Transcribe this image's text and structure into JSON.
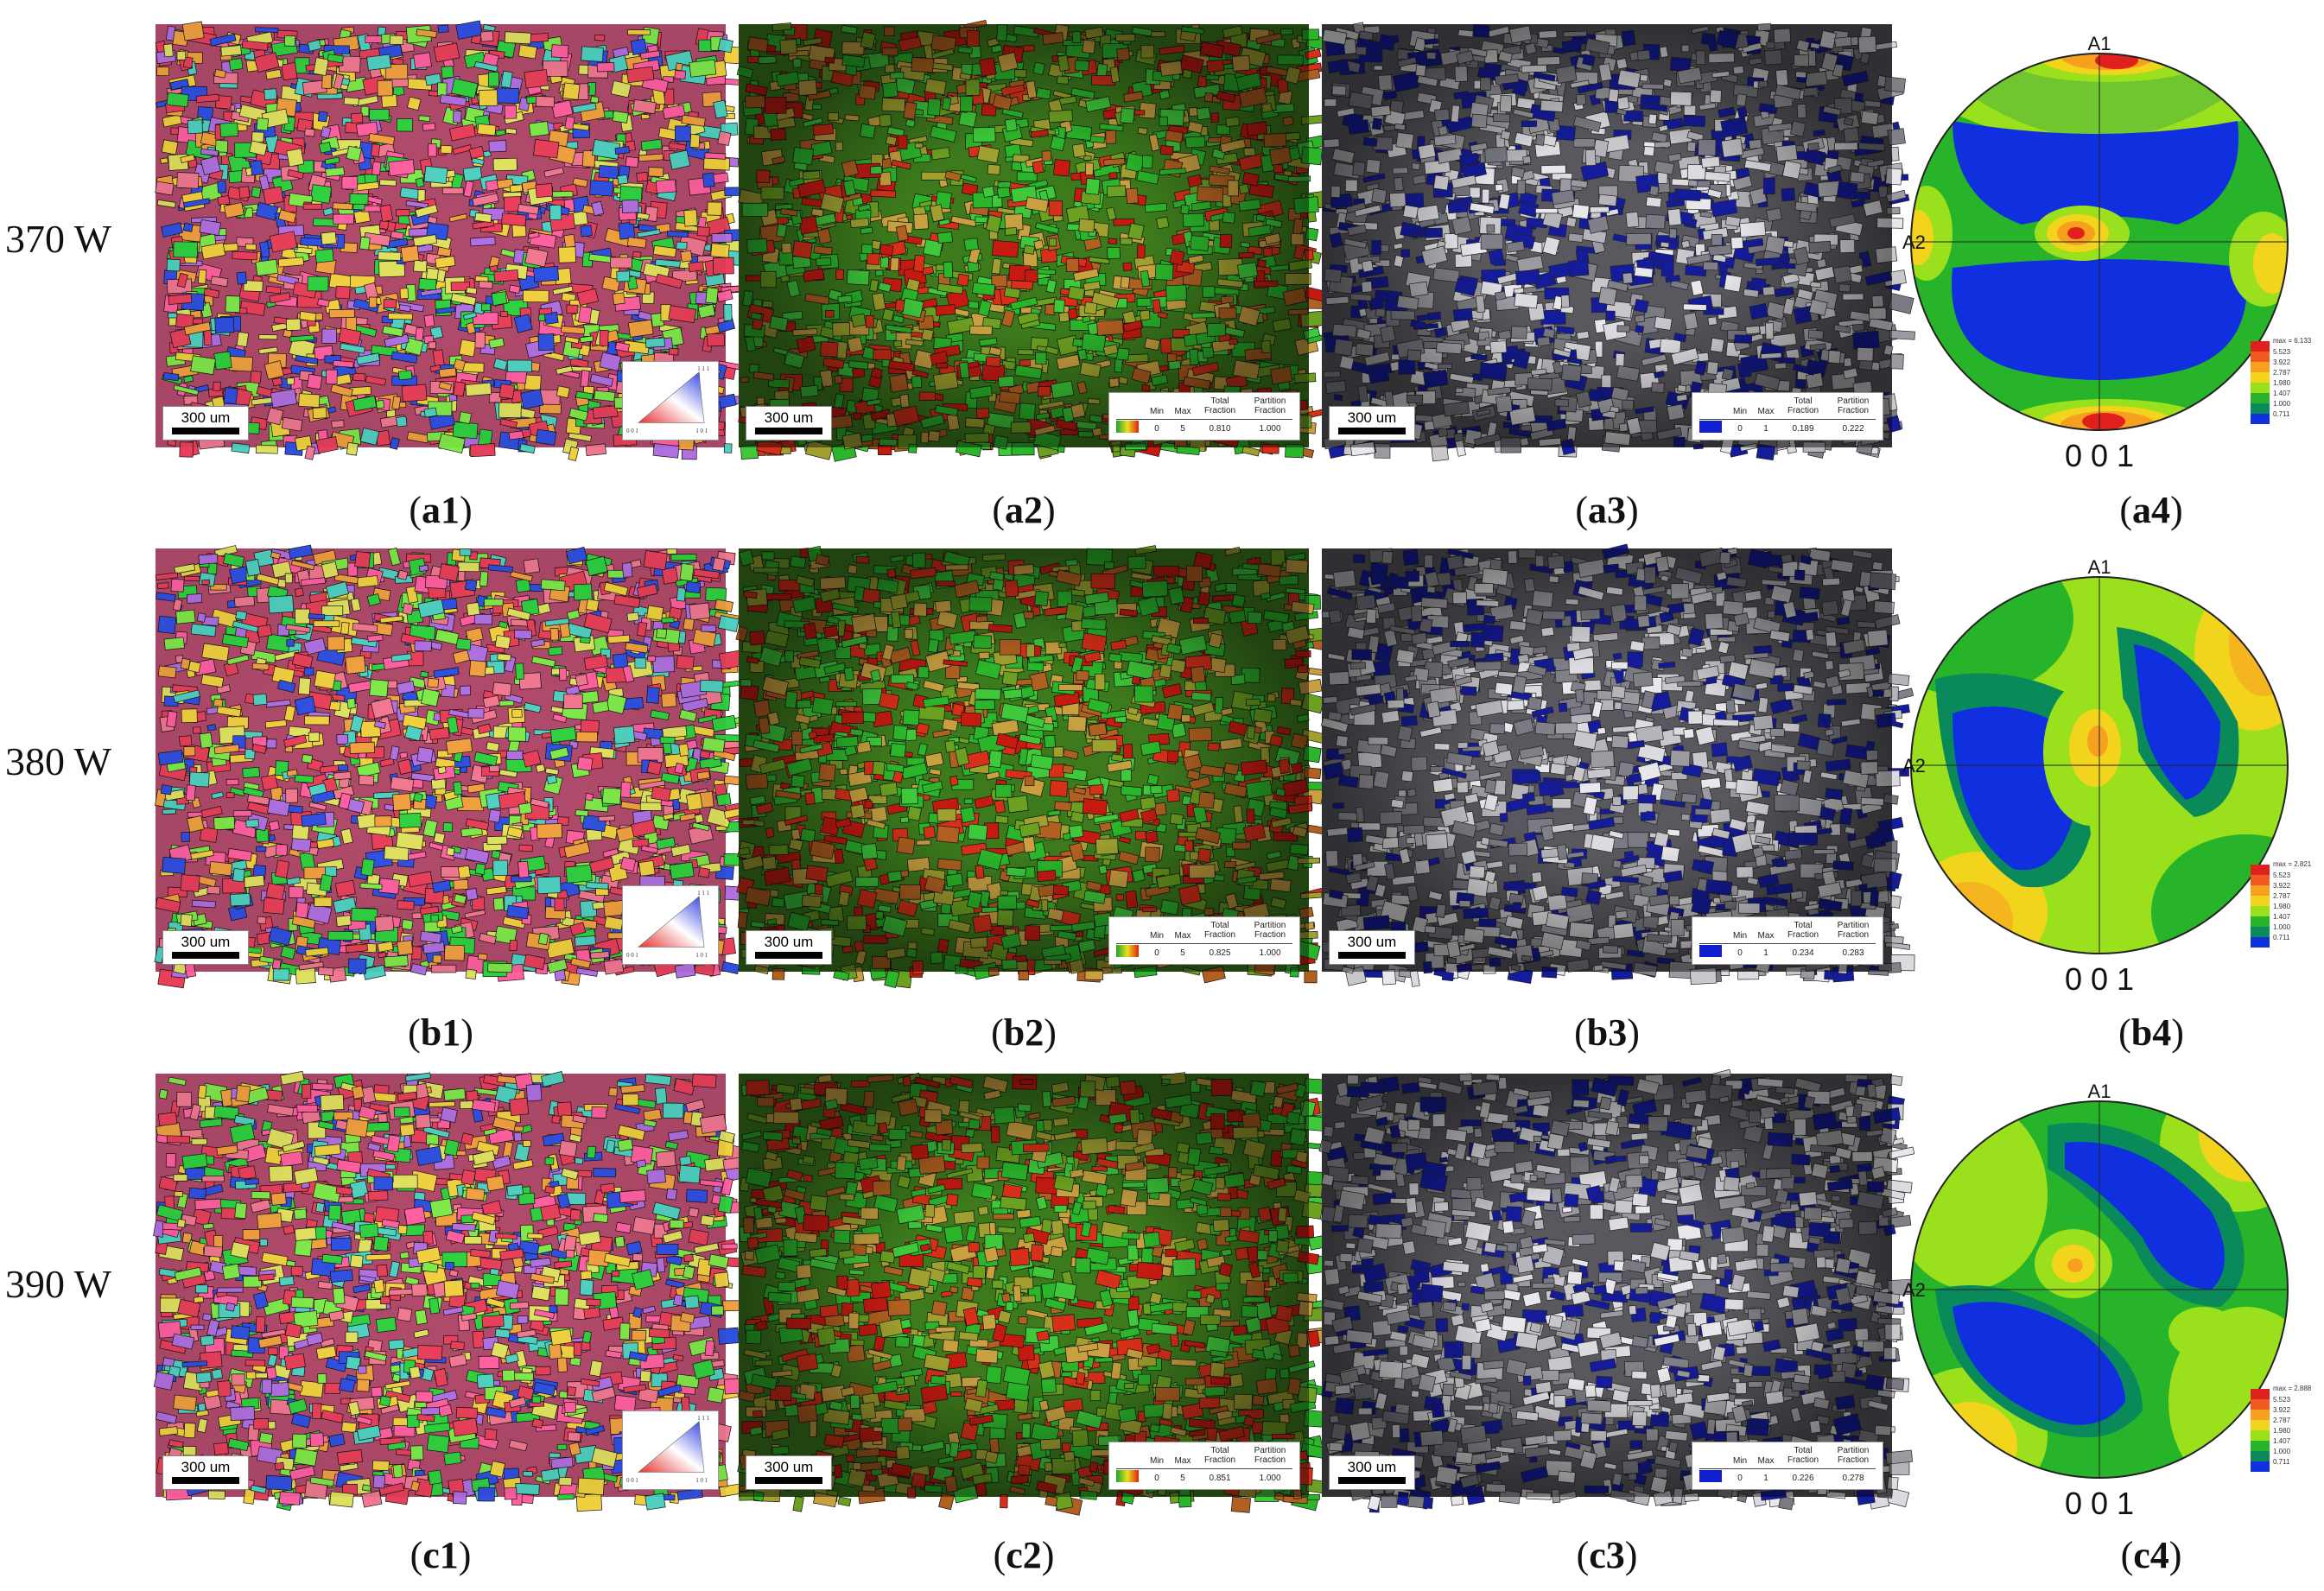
{
  "rows": [
    {
      "power": "370 W",
      "id": "a",
      "legend_kam": {
        "min_label": "Min",
        "max_label": "Max",
        "total_label": "Total\nFraction",
        "partition_label": "Partition\nFraction",
        "min": "0",
        "max": "5",
        "total": "0.810",
        "partition": "1.000"
      },
      "legend_gos": {
        "min_label": "Min",
        "max_label": "Max",
        "total_label": "Total\nFraction",
        "partition_label": "Partition\nFraction",
        "min": "0",
        "max": "1",
        "total": "0.189",
        "partition": "0.222"
      },
      "pf_max": "max = 6.133",
      "captions": [
        "a1",
        "a2",
        "a3",
        "a4"
      ]
    },
    {
      "power": "380 W",
      "id": "b",
      "legend_kam": {
        "min_label": "Min",
        "max_label": "Max",
        "total_label": "Total\nFraction",
        "partition_label": "Partition\nFraction",
        "min": "0",
        "max": "5",
        "total": "0.825",
        "partition": "1.000"
      },
      "legend_gos": {
        "min_label": "Min",
        "max_label": "Max",
        "total_label": "Total\nFraction",
        "partition_label": "Partition\nFraction",
        "min": "0",
        "max": "1",
        "total": "0.234",
        "partition": "0.283"
      },
      "pf_max": "max = 2.821",
      "captions": [
        "b1",
        "b2",
        "b3",
        "b4"
      ]
    },
    {
      "power": "390 W",
      "id": "c",
      "legend_kam": {
        "min_label": "Min",
        "max_label": "Max",
        "total_label": "Total\nFraction",
        "partition_label": "Partition\nFraction",
        "min": "0",
        "max": "5",
        "total": "0.851",
        "partition": "1.000"
      },
      "legend_gos": {
        "min_label": "Min",
        "max_label": "Max",
        "total_label": "Total\nFraction",
        "partition_label": "Partition\nFraction",
        "min": "0",
        "max": "1",
        "total": "0.226",
        "partition": "0.278"
      },
      "pf_max": "max = 2.888",
      "captions": [
        "c1",
        "c2",
        "c3",
        "c4"
      ]
    }
  ],
  "scale_bar": "300 um",
  "ipf_key": {
    "top": "1 1 1",
    "left": "0 0 1",
    "right": "1 0 1"
  },
  "pole_figure": {
    "a1": "A1",
    "a2": "A2",
    "plane": "0 0 1",
    "levels": [
      "5.523",
      "3.922",
      "2.787",
      "1.980",
      "1.407",
      "1.000",
      "0.711"
    ],
    "level_colors": [
      "#e0201c",
      "#f05a20",
      "#f7a020",
      "#f2d41c",
      "#9be01c",
      "#28b42a",
      "#0a8a5a",
      "#1030e0"
    ]
  },
  "colors": {
    "ipf_red": "#e8405a",
    "ipf_green": "#30d040",
    "ipf_blue": "#3050e0",
    "kam_red": "#c41a10",
    "kam_green": "#2bb52a",
    "gos_blue": "#141c9c",
    "gos_gray": "#c8c8cc"
  }
}
